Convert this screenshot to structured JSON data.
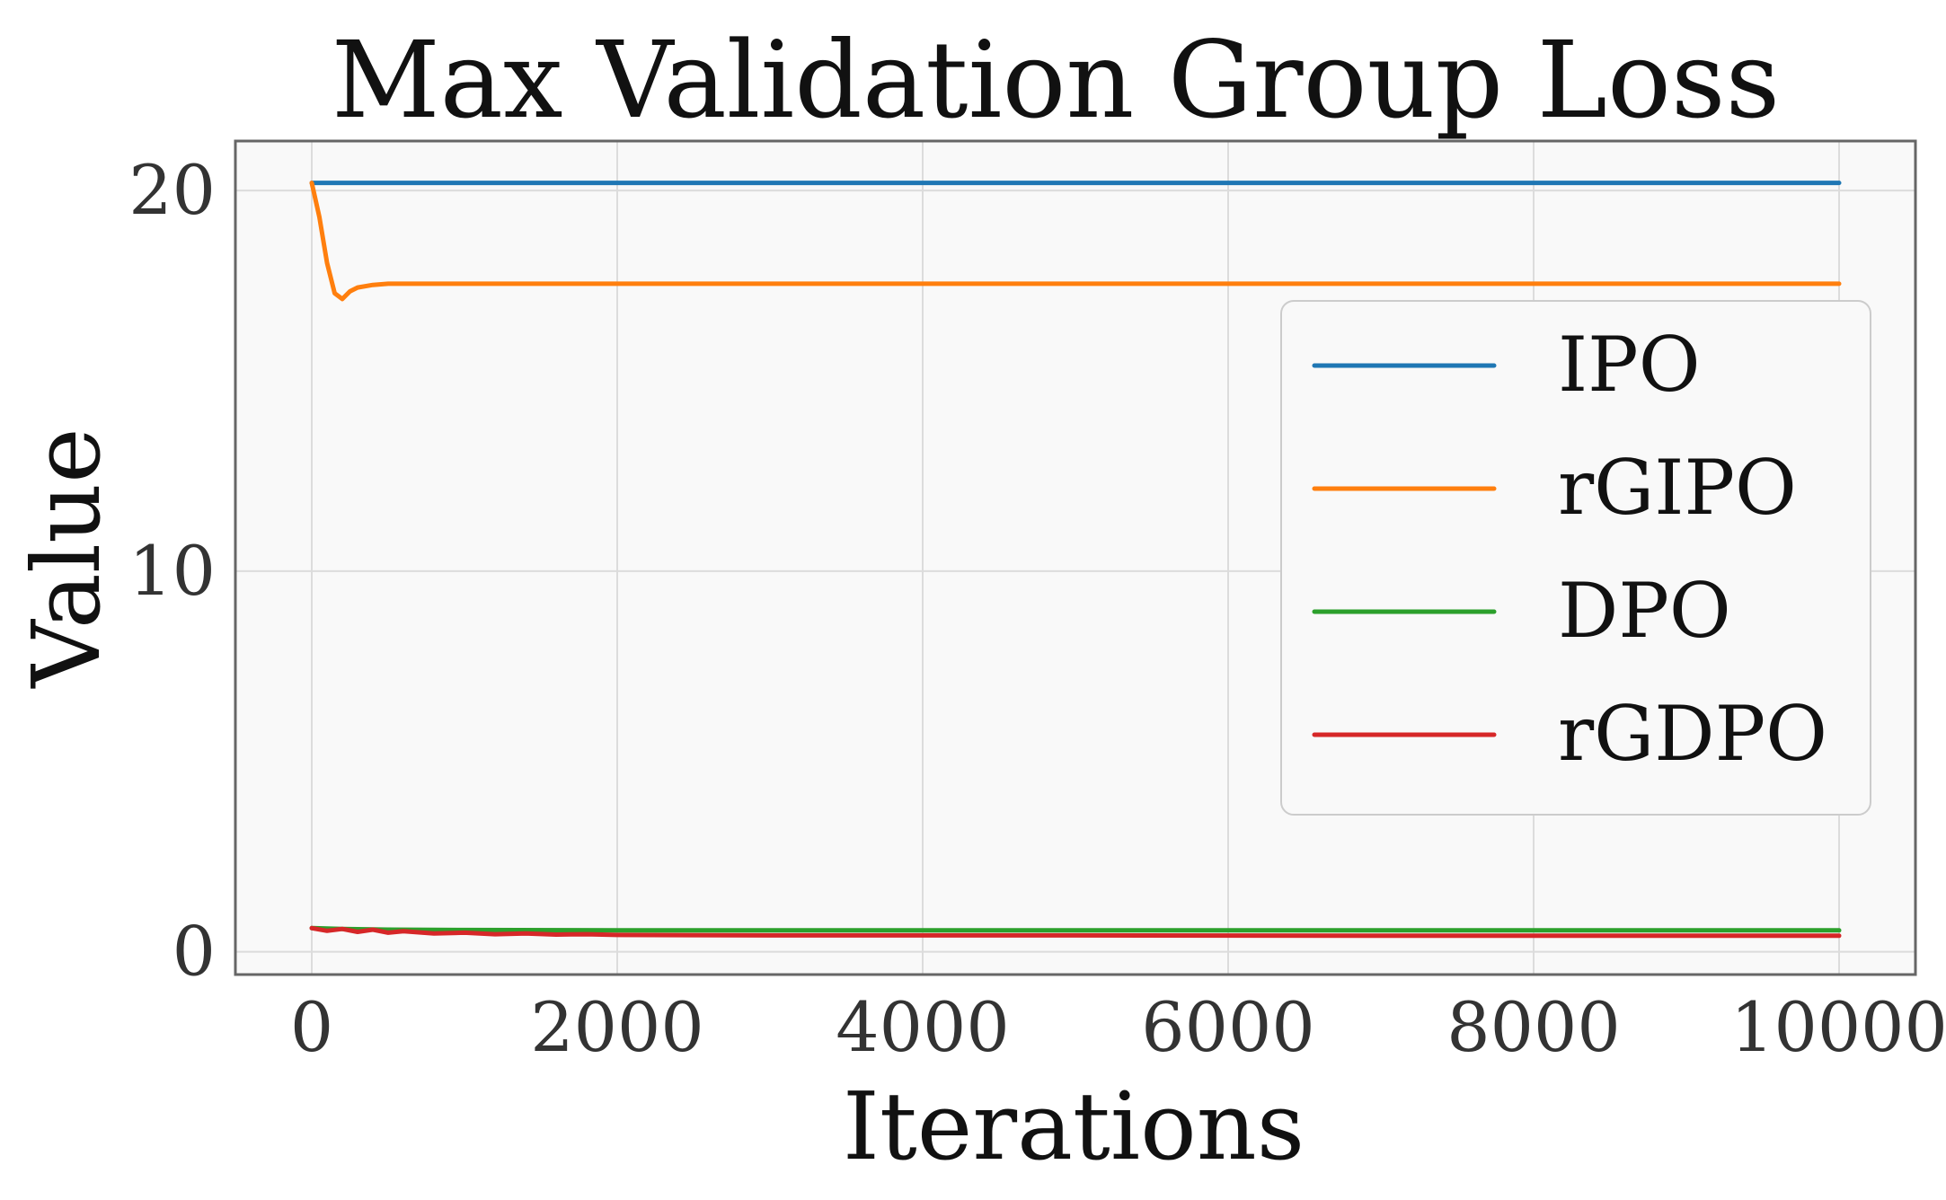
{
  "chart_data": {
    "type": "line",
    "title": "Max Validation Group Loss",
    "xlabel": "Iterations",
    "ylabel": "Value",
    "xlim": [
      -500,
      10500
    ],
    "ylim": [
      -0.6,
      21.3
    ],
    "xticks": [
      0,
      2000,
      4000,
      6000,
      8000,
      10000
    ],
    "yticks": [
      0,
      10,
      20
    ],
    "grid": true,
    "legend_position": "center-right",
    "series": [
      {
        "name": "IPO",
        "color": "#1f77b4",
        "x": [
          0,
          10000
        ],
        "y": [
          20.2,
          20.2
        ]
      },
      {
        "name": "rGIPO",
        "color": "#ff7f0e",
        "x": [
          0,
          50,
          100,
          150,
          200,
          250,
          300,
          400,
          500,
          700,
          1000,
          2000,
          5000,
          10000
        ],
        "y": [
          20.2,
          19.3,
          18.1,
          17.3,
          17.15,
          17.35,
          17.45,
          17.52,
          17.55,
          17.55,
          17.55,
          17.55,
          17.55,
          17.55
        ]
      },
      {
        "name": "DPO",
        "color": "#2ca02c",
        "x": [
          0,
          200,
          500,
          1000,
          2000,
          5000,
          10000
        ],
        "y": [
          0.62,
          0.6,
          0.58,
          0.57,
          0.56,
          0.56,
          0.56
        ]
      },
      {
        "name": "rGDPO",
        "color": "#d62728",
        "x": [
          0,
          100,
          200,
          300,
          400,
          500,
          600,
          800,
          1000,
          1200,
          1400,
          1600,
          1800,
          2000,
          3000,
          5000,
          7000,
          10000
        ],
        "y": [
          0.62,
          0.55,
          0.6,
          0.52,
          0.58,
          0.5,
          0.54,
          0.48,
          0.5,
          0.46,
          0.48,
          0.45,
          0.46,
          0.44,
          0.43,
          0.43,
          0.42,
          0.42
        ]
      }
    ]
  }
}
